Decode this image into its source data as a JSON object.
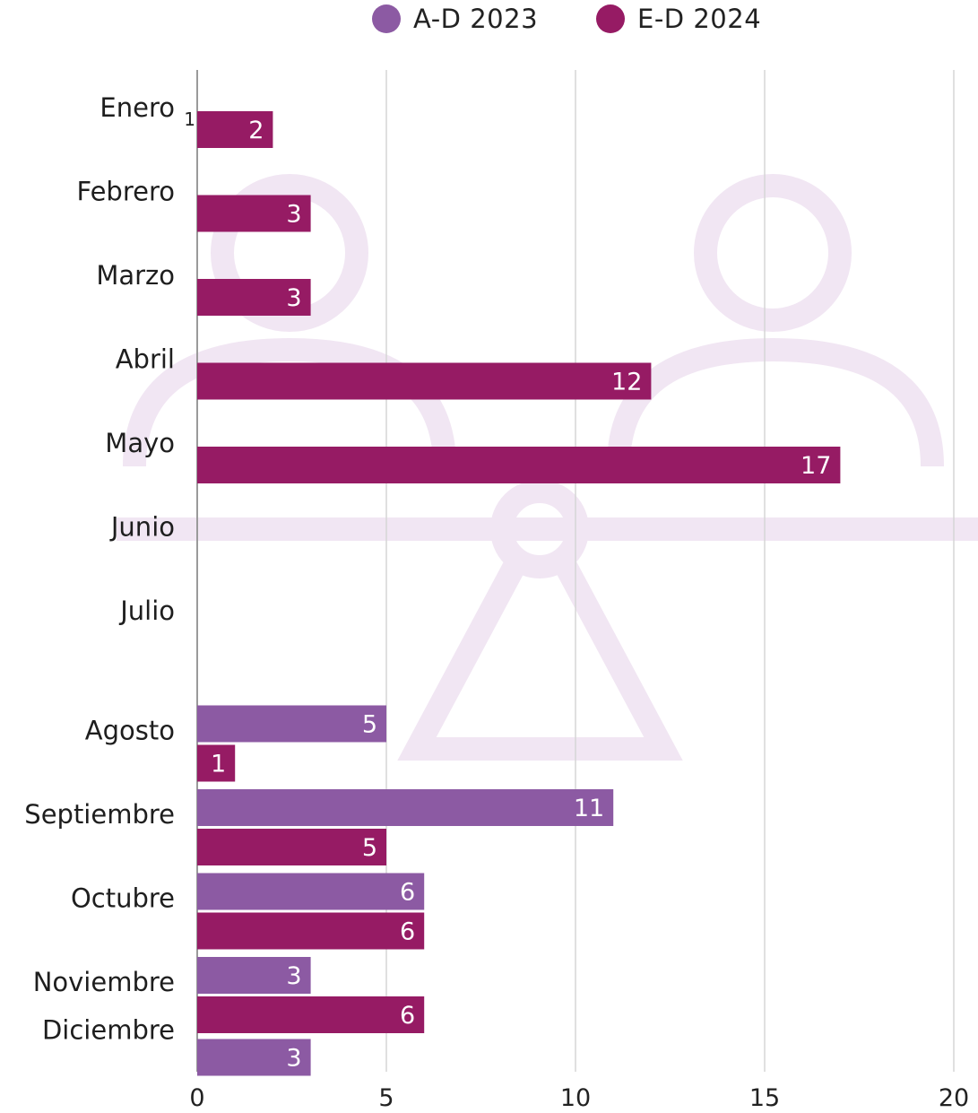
{
  "legend": [
    {
      "label": "A-D 2023",
      "color": "#8c5aa3"
    },
    {
      "label": "E-D 2024",
      "color": "#961b64"
    }
  ],
  "chart_data": {
    "type": "bar",
    "orientation": "horizontal",
    "categories": [
      "Enero",
      "Febrero",
      "Marzo",
      "Abril",
      "Mayo",
      "Junio",
      "Julio",
      "Agosto",
      "Septiembre",
      "Octubre",
      "Noviembre",
      "Diciembre"
    ],
    "series": [
      {
        "name": "A-D 2023",
        "color": "#8c5aa3",
        "values": [
          null,
          null,
          null,
          null,
          null,
          null,
          null,
          5,
          11,
          6,
          3,
          3
        ]
      },
      {
        "name": "E-D 2024",
        "color": "#961b64",
        "values": [
          2,
          3,
          3,
          12,
          17,
          null,
          null,
          1,
          5,
          6,
          6,
          null
        ]
      }
    ],
    "annotations": [
      {
        "category": "Enero",
        "text": "1"
      }
    ],
    "xlim": [
      0,
      20
    ],
    "xticks": [
      0,
      5,
      10,
      15,
      20
    ],
    "grid": "vertical",
    "legend_position": "top-center"
  }
}
